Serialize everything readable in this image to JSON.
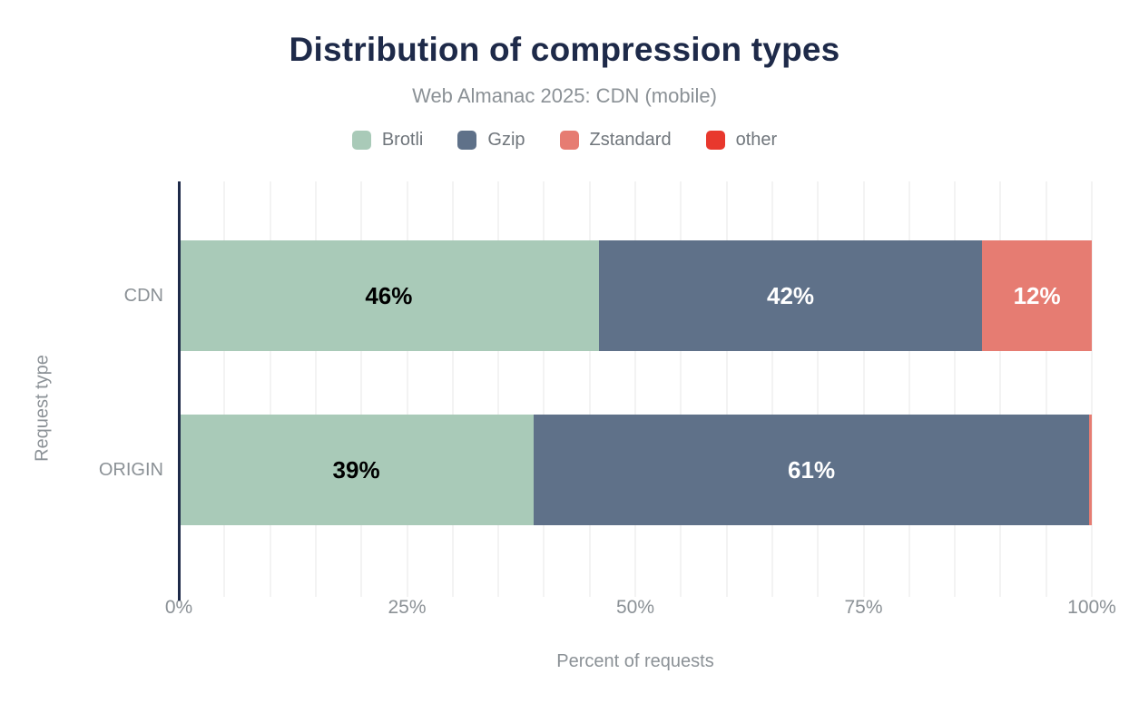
{
  "colors": {
    "title_navy": "#1e2a49",
    "axis_line_navy": "#1e2a49",
    "muted_text_gray": "#8b9196",
    "legend_text_gray": "#70767c",
    "gridline_gray": "#f3f3f3",
    "background": "#ffffff"
  },
  "chart_data": {
    "type": "bar",
    "orientation": "horizontal",
    "stacked": true,
    "title": "Distribution of compression types",
    "subtitle": "Web Almanac 2025: CDN (mobile)",
    "xlabel": "Percent of requests",
    "ylabel": "Request type",
    "categories": [
      "CDN",
      "ORIGIN"
    ],
    "series": [
      {
        "name": "Brotli",
        "color": "#a9cab8",
        "label_color": "#000000",
        "values": [
          46,
          39
        ]
      },
      {
        "name": "Gzip",
        "color": "#5f7189",
        "label_color": "#ffffff",
        "values": [
          42,
          61
        ]
      },
      {
        "name": "Zstandard",
        "color": "#e67c72",
        "label_color": "#ffffff",
        "values": [
          12,
          0.3
        ]
      },
      {
        "name": "other",
        "color": "#e8382d",
        "label_color": "#ffffff",
        "values": [
          0,
          0
        ]
      }
    ],
    "data_labels": [
      [
        "46%",
        "42%",
        "12%"
      ],
      [
        "39%",
        "61%"
      ]
    ],
    "xlim": [
      0,
      100
    ],
    "x_ticks": [
      {
        "label": "0%",
        "value": 0
      },
      {
        "label": "25%",
        "value": 25
      },
      {
        "label": "50%",
        "value": 50
      },
      {
        "label": "75%",
        "value": 75
      },
      {
        "label": "100%",
        "value": 100
      }
    ],
    "grid": {
      "on": true,
      "vertical_step": 5
    },
    "legend_position": "top"
  }
}
